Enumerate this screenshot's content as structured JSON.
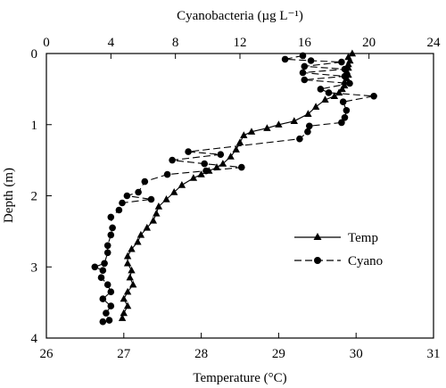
{
  "chart_data": {
    "type": "line",
    "top_axis": {
      "label": "Cyanobacteria (µg L⁻¹)",
      "ticks": [
        "0",
        "4",
        "8",
        "12",
        "16",
        "20",
        "24"
      ],
      "range": [
        0,
        24
      ]
    },
    "bottom_axis": {
      "label": "Temperature (°C)",
      "ticks": [
        "26",
        "27",
        "28",
        "29",
        "30",
        "31"
      ],
      "range": [
        26,
        31
      ]
    },
    "left_axis": {
      "label": "Depth (m)",
      "ticks": [
        "0",
        "1",
        "2",
        "3",
        "4"
      ],
      "range": [
        0,
        4
      ],
      "inverted": true
    },
    "legend": {
      "position": "right-middle",
      "entries": [
        "Temp",
        "Cyano"
      ]
    },
    "series": [
      {
        "name": "Temp",
        "axis": "bottom",
        "marker": "triangle",
        "line_style": "solid",
        "color": "#000000",
        "points": [
          [
            29.95,
            0.0
          ],
          [
            29.9,
            0.05
          ],
          [
            29.92,
            0.1
          ],
          [
            29.9,
            0.15
          ],
          [
            29.9,
            0.2
          ],
          [
            29.88,
            0.25
          ],
          [
            29.9,
            0.3
          ],
          [
            29.88,
            0.35
          ],
          [
            29.85,
            0.4
          ],
          [
            29.85,
            0.45
          ],
          [
            29.82,
            0.5
          ],
          [
            29.78,
            0.55
          ],
          [
            29.72,
            0.6
          ],
          [
            29.6,
            0.65
          ],
          [
            29.48,
            0.75
          ],
          [
            29.38,
            0.85
          ],
          [
            29.2,
            0.95
          ],
          [
            29.0,
            1.0
          ],
          [
            28.85,
            1.05
          ],
          [
            28.65,
            1.1
          ],
          [
            28.55,
            1.15
          ],
          [
            28.5,
            1.25
          ],
          [
            28.45,
            1.35
          ],
          [
            28.38,
            1.45
          ],
          [
            28.28,
            1.55
          ],
          [
            28.2,
            1.6
          ],
          [
            28.1,
            1.65
          ],
          [
            28.0,
            1.7
          ],
          [
            27.9,
            1.75
          ],
          [
            27.75,
            1.85
          ],
          [
            27.65,
            1.95
          ],
          [
            27.55,
            2.05
          ],
          [
            27.45,
            2.15
          ],
          [
            27.42,
            2.25
          ],
          [
            27.38,
            2.35
          ],
          [
            27.3,
            2.45
          ],
          [
            27.22,
            2.55
          ],
          [
            27.18,
            2.65
          ],
          [
            27.1,
            2.75
          ],
          [
            27.05,
            2.85
          ],
          [
            27.05,
            2.95
          ],
          [
            27.1,
            3.05
          ],
          [
            27.08,
            3.15
          ],
          [
            27.12,
            3.25
          ],
          [
            27.05,
            3.35
          ],
          [
            27.0,
            3.45
          ],
          [
            27.05,
            3.55
          ],
          [
            27.0,
            3.65
          ],
          [
            26.98,
            3.72
          ]
        ]
      },
      {
        "name": "Cyano",
        "axis": "top",
        "marker": "circle",
        "line_style": "dashed",
        "color": "#000000",
        "points": [
          [
            15.9,
            0.03
          ],
          [
            14.8,
            0.08
          ],
          [
            16.4,
            0.1
          ],
          [
            18.3,
            0.12
          ],
          [
            16.0,
            0.18
          ],
          [
            18.5,
            0.22
          ],
          [
            15.9,
            0.27
          ],
          [
            18.5,
            0.32
          ],
          [
            16.0,
            0.37
          ],
          [
            18.8,
            0.42
          ],
          [
            17.0,
            0.5
          ],
          [
            17.5,
            0.55
          ],
          [
            20.3,
            0.6
          ],
          [
            18.4,
            0.68
          ],
          [
            18.6,
            0.8
          ],
          [
            18.5,
            0.9
          ],
          [
            18.3,
            0.97
          ],
          [
            16.3,
            1.02
          ],
          [
            16.2,
            1.1
          ],
          [
            15.7,
            1.2
          ],
          [
            8.8,
            1.38
          ],
          [
            10.8,
            1.42
          ],
          [
            7.8,
            1.5
          ],
          [
            9.8,
            1.55
          ],
          [
            12.1,
            1.6
          ],
          [
            9.9,
            1.65
          ],
          [
            7.5,
            1.7
          ],
          [
            6.1,
            1.8
          ],
          [
            5.7,
            1.95
          ],
          [
            5.0,
            2.0
          ],
          [
            6.5,
            2.05
          ],
          [
            4.7,
            2.1
          ],
          [
            4.5,
            2.2
          ],
          [
            4.0,
            2.3
          ],
          [
            4.1,
            2.45
          ],
          [
            4.0,
            2.55
          ],
          [
            3.8,
            2.7
          ],
          [
            3.8,
            2.8
          ],
          [
            3.6,
            2.95
          ],
          [
            3.0,
            3.0
          ],
          [
            3.5,
            3.05
          ],
          [
            3.4,
            3.15
          ],
          [
            3.8,
            3.25
          ],
          [
            4.0,
            3.35
          ],
          [
            3.5,
            3.45
          ],
          [
            4.0,
            3.55
          ],
          [
            3.7,
            3.65
          ],
          [
            3.9,
            3.75
          ],
          [
            3.5,
            3.77
          ]
        ]
      }
    ]
  }
}
